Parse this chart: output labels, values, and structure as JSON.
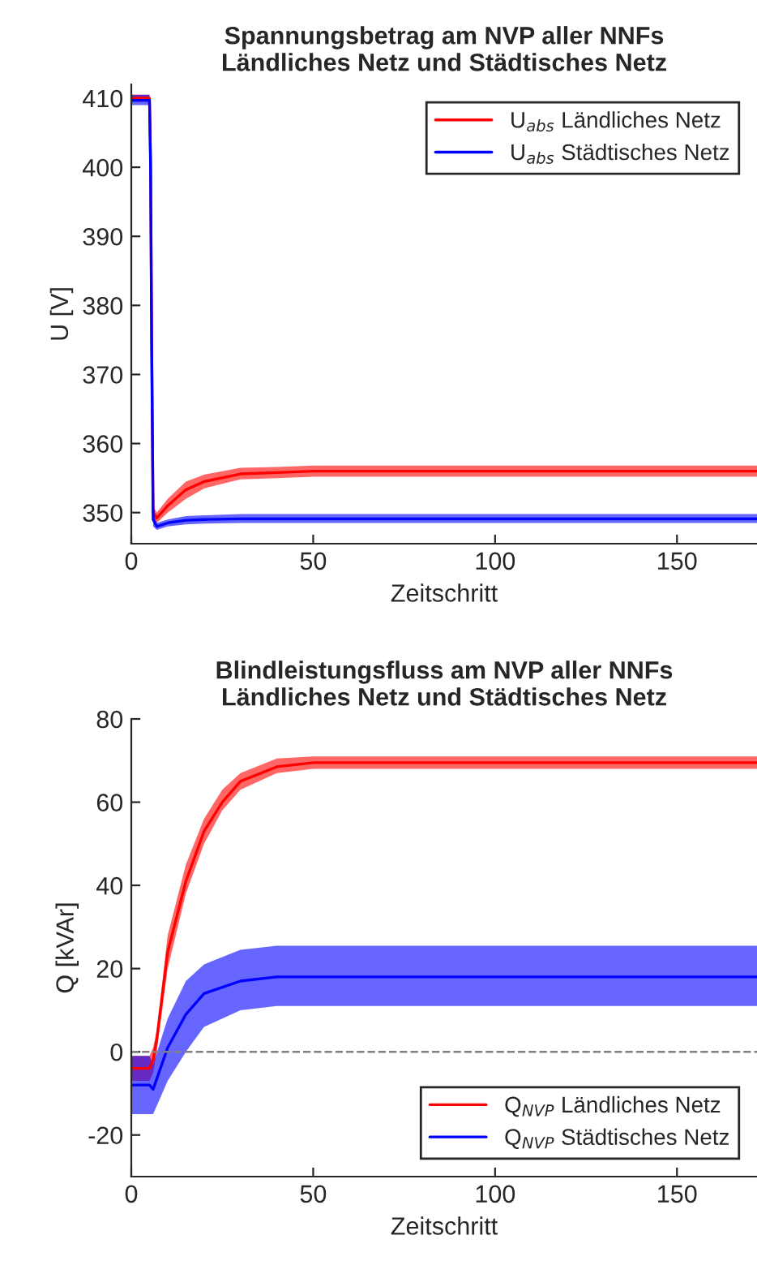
{
  "chart_data": [
    {
      "type": "line",
      "title": "Spannungsbetrag am NVP aller NNFs\nLändliches Netz und Städtisches Netz",
      "xlabel": "Zeitschritt",
      "ylabel": "U [V]",
      "xlim": [
        0,
        172
      ],
      "xticks": [
        0,
        50,
        100,
        150
      ],
      "ylim": [
        345.5,
        412
      ],
      "yticks": [
        350,
        360,
        370,
        380,
        390,
        400,
        410
      ],
      "grid": false,
      "legend": "top right",
      "series": [
        {
          "name": "U$_{abs}$ Ländliches Netz",
          "color": "#ff0000",
          "x": [
            0,
            5,
            5.3,
            5.6,
            6,
            7,
            10,
            15,
            20,
            30,
            40,
            50,
            100,
            172
          ],
          "values": [
            410,
            410,
            401,
            375,
            350,
            349.2,
            351,
            353.3,
            354.5,
            355.6,
            355.8,
            356,
            356,
            356
          ],
          "lower": [
            409.5,
            409.5,
            400,
            374,
            349,
            348.5,
            350,
            352,
            353.5,
            354.8,
            355,
            355.2,
            355.2,
            355.2
          ],
          "upper": [
            410.5,
            410.5,
            402,
            376,
            351,
            350,
            352,
            354.5,
            355.5,
            356.5,
            356.6,
            356.8,
            356.8,
            356.8
          ]
        },
        {
          "name": "U$_{abs}$ Städtisches Netz",
          "color": "#0000ff",
          "x": [
            0,
            5,
            5.3,
            5.6,
            6,
            7,
            10,
            15,
            20,
            30,
            40,
            50,
            100,
            172
          ],
          "values": [
            409.7,
            409.7,
            400,
            374,
            349,
            348,
            348.5,
            348.9,
            349,
            349.1,
            349.1,
            349.1,
            349.1,
            349.1
          ],
          "lower": [
            409,
            409,
            399,
            373,
            348,
            347.5,
            348,
            348.3,
            348.4,
            348.5,
            348.5,
            348.5,
            348.5,
            348.5
          ],
          "upper": [
            410.5,
            410.5,
            401,
            375,
            350,
            348.5,
            349,
            349.5,
            349.6,
            349.8,
            349.8,
            349.8,
            349.8,
            349.8
          ]
        }
      ]
    },
    {
      "type": "line",
      "title": "Blindleistungsfluss am NVP aller NNFs\nLändliches Netz und Städtisches Netz",
      "xlabel": "Zeitschritt",
      "ylabel": "Q [kVAr]",
      "xlim": [
        0,
        172
      ],
      "xticks": [
        0,
        50,
        100,
        150
      ],
      "ylim": [
        -30,
        80
      ],
      "yticks": [
        -20,
        0,
        20,
        40,
        60,
        80
      ],
      "grid": false,
      "legend": "bottom right",
      "ref_lines": [
        {
          "axis": "y",
          "value": 0,
          "color": "#808080",
          "line_style": "dashed"
        }
      ],
      "series": [
        {
          "name": "Q$_{NVP}$ Ländliches Netz",
          "color": "#ff0000",
          "x": [
            0,
            5,
            6,
            7,
            10,
            15,
            20,
            25,
            30,
            40,
            50,
            100,
            172
          ],
          "values": [
            -4,
            -4,
            -2,
            3,
            24,
            41,
            53,
            60,
            65,
            68.5,
            69.5,
            69.5,
            69.5
          ],
          "lower": [
            -7,
            -7,
            -5,
            0,
            20,
            38,
            50,
            58,
            63,
            67,
            68,
            68,
            68
          ],
          "upper": [
            -1,
            -1,
            1,
            5,
            28,
            45,
            56,
            63,
            67,
            70.5,
            71,
            71,
            71
          ]
        },
        {
          "name": "Q$_{NVP}$ Städtisches Netz",
          "color": "#0000ff",
          "x": [
            0,
            5,
            6,
            10,
            15,
            20,
            30,
            40,
            50,
            100,
            172
          ],
          "values": [
            -8,
            -8,
            -9,
            1,
            9,
            14,
            17,
            18,
            18,
            18,
            18
          ],
          "lower": [
            -15,
            -15,
            -15,
            -7,
            0,
            6,
            10,
            11,
            11,
            11,
            11
          ],
          "upper": [
            -1,
            -1,
            -3,
            8,
            17,
            21,
            24.5,
            25.5,
            25.5,
            25.5,
            25.5
          ]
        }
      ]
    }
  ]
}
